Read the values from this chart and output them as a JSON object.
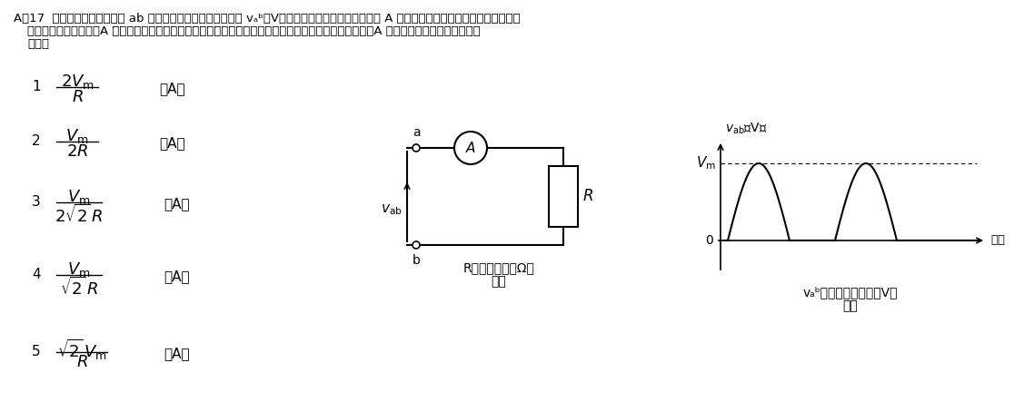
{
  "title_line1": "A－17  図１に示す回路の端子 ab 間に図２に示す半波整流電圧 vₐᵇ〔V〕を加えたとき、整流形電流計 A の指示値として、正しいものを下の番",
  "title_line2": "号から選べ。ただし、A は全波整流形で目盛は正弦波交流の実効値で校正されているものとする。また、A の内部抵抗は無視するものと",
  "title_line3": "する。",
  "options": [
    {
      "num": "1",
      "numer": "2V\\u2098",
      "denom": "R",
      "unit": "〔A〕"
    },
    {
      "num": "2",
      "numer": "V\\u2098",
      "denom": "2R",
      "unit": "〔A〕"
    },
    {
      "num": "3",
      "numer": "V\\u2098",
      "denom": "2\\u221a 2 R",
      "unit": "〔A〕"
    },
    {
      "num": "4",
      "numer": "V\\u2098",
      "denom": "\\u221a 2 R",
      "unit": "〔A〕"
    },
    {
      "num": "5",
      "numer": "\\u221a 2 V\\u2098",
      "denom": "R",
      "unit": "〔A〕"
    }
  ],
  "fig1_label": "図１",
  "fig1_caption": "R：負荷抵抗〔Ω〕",
  "fig2_label": "図２",
  "fig2_caption": "vₐᵇ：半波整流電圧〔V〕",
  "fig2_ylabel": "vₐᵇ〔V〕",
  "fig2_vm_label": "Vₘ",
  "fig2_time_label": "時間",
  "fig2_zero_label": "0",
  "bg_color": "#ffffff",
  "text_color": "#000000"
}
